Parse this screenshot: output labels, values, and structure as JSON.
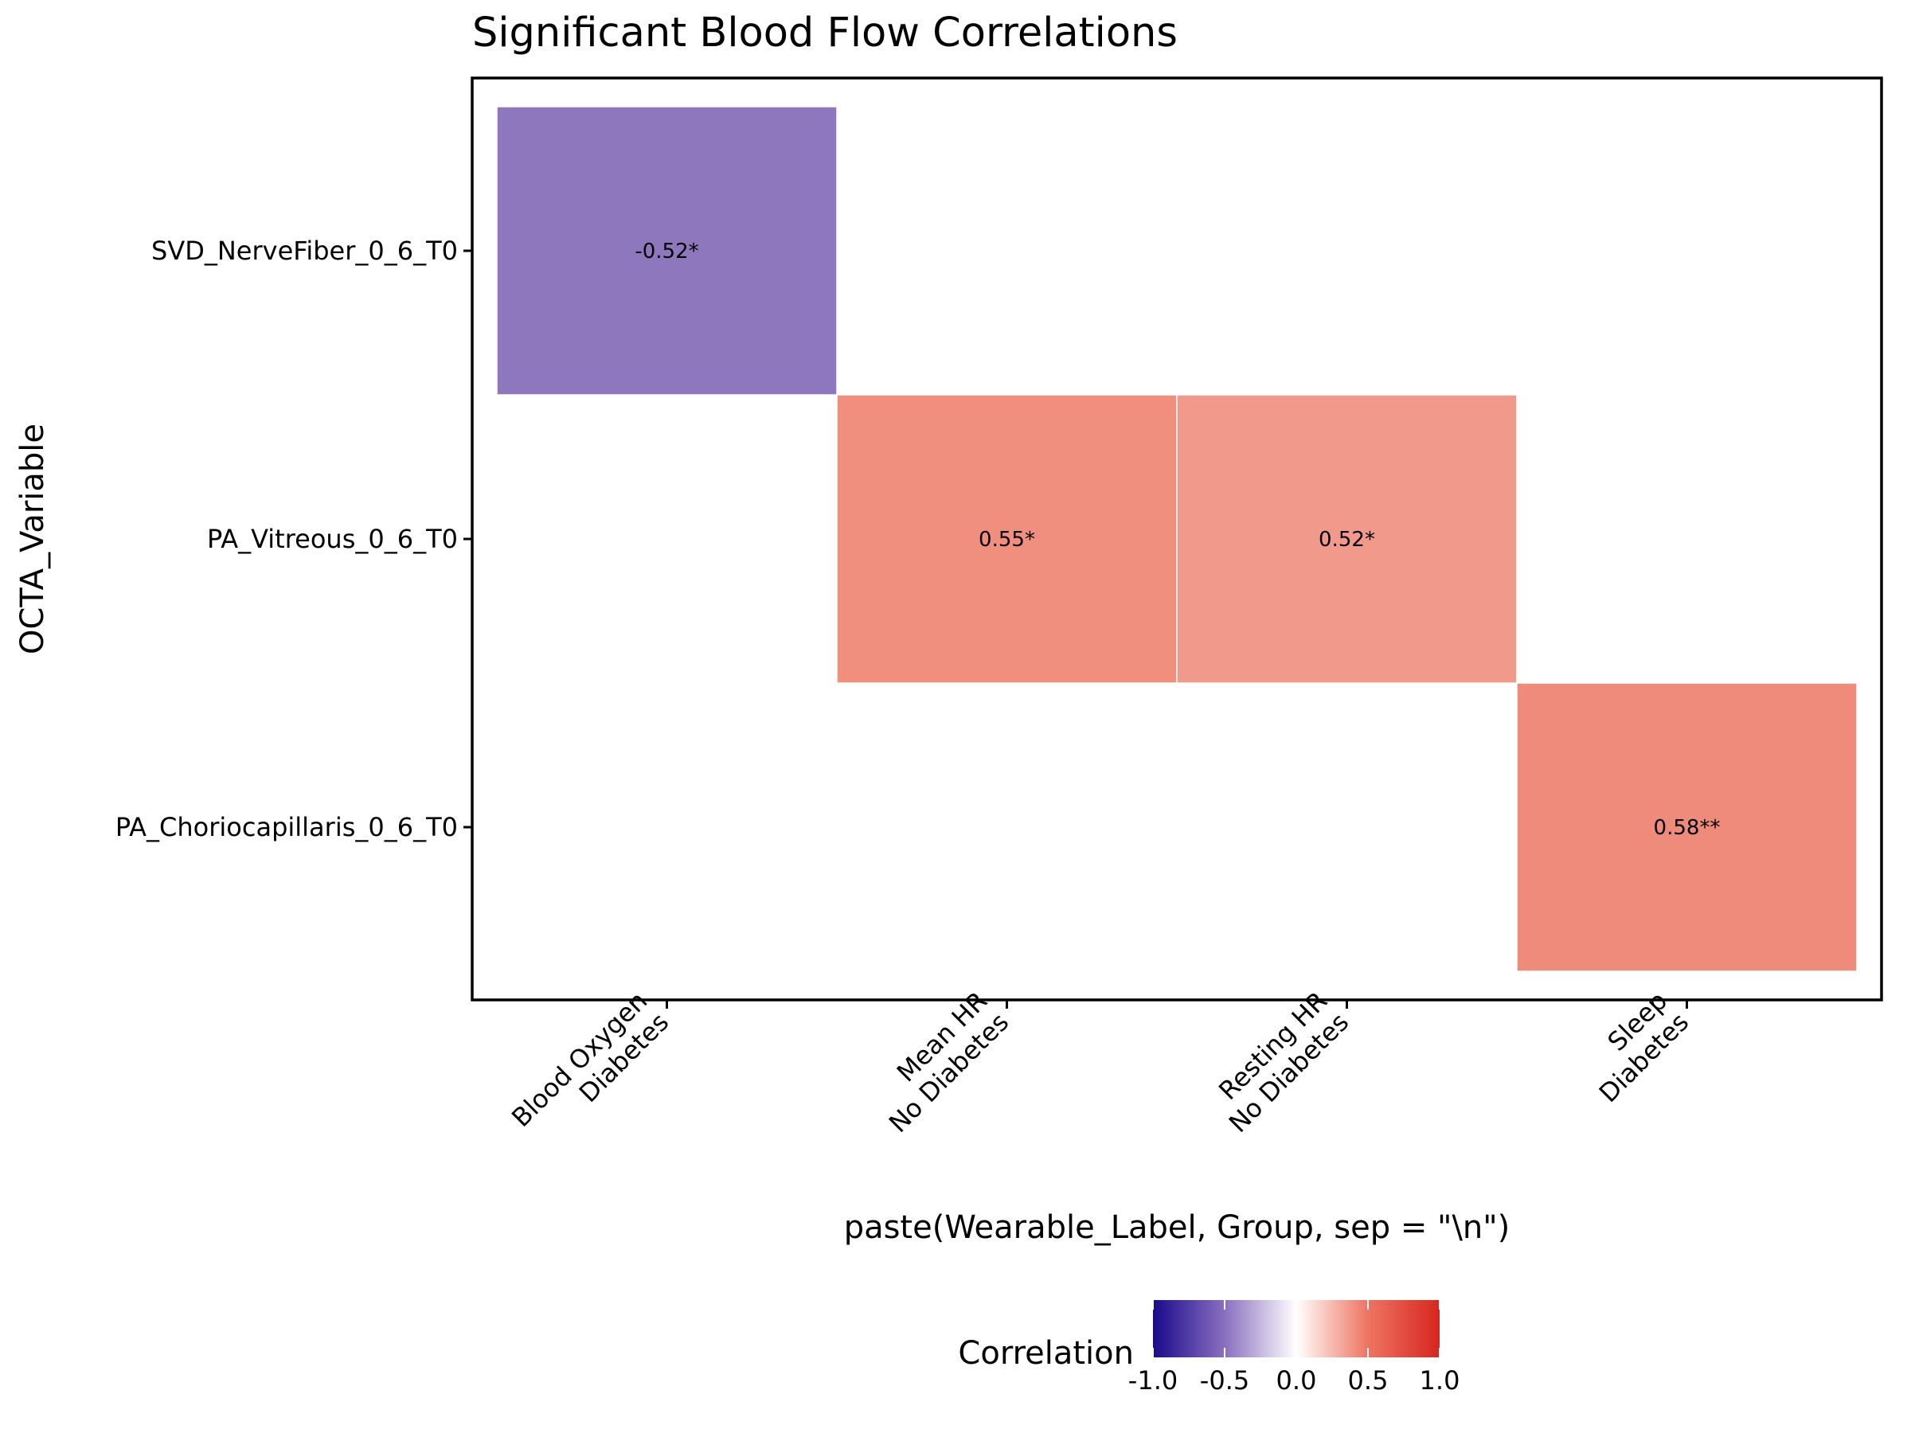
{
  "chart_data": {
    "type": "heatmap",
    "title": "Significant Blood Flow Correlations",
    "xlabel": "paste(Wearable_Label, Group, sep = \"\\n\")",
    "ylabel": "OCTA_Variable",
    "x_categories": [
      [
        "Blood Oxygen",
        "Diabetes"
      ],
      [
        "Mean HR",
        "No Diabetes"
      ],
      [
        "Resting HR",
        "No Diabetes"
      ],
      [
        "Sleep",
        "Diabetes"
      ]
    ],
    "y_categories": [
      "SVD_NerveFiber_0_6_T0",
      "PA_Vitreous_0_6_T0",
      "PA_Choriocapillaris_0_6_T0"
    ],
    "cells": [
      {
        "x": 0,
        "y": 0,
        "value": -0.52,
        "label": "-0.52*"
      },
      {
        "x": 1,
        "y": 1,
        "value": 0.55,
        "label": "0.55*"
      },
      {
        "x": 2,
        "y": 1,
        "value": 0.52,
        "label": "0.52*"
      },
      {
        "x": 3,
        "y": 2,
        "value": 0.58,
        "label": "0.58**"
      }
    ],
    "legend": {
      "title": "Correlation",
      "position": "bottom",
      "limits": [
        -1,
        1
      ],
      "ticks": [
        "-1.0",
        "-0.5",
        "0.0",
        "0.5",
        "1.0"
      ],
      "colors": {
        "low": "#1a0a8c",
        "mid": "#ffffff",
        "high": "#d7261e"
      }
    },
    "grid": false
  }
}
